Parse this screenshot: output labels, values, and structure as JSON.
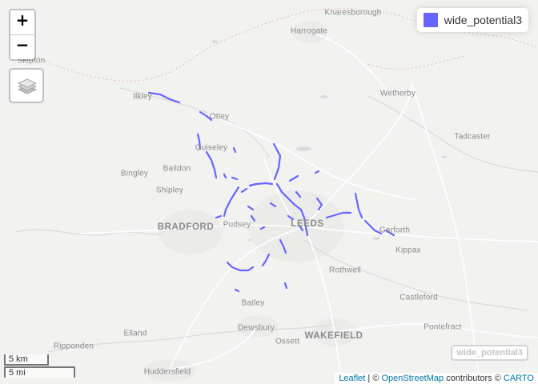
{
  "map": {
    "places": [
      {
        "name": "Knaresborough",
        "kind": "town"
      },
      {
        "name": "Harrogate",
        "kind": "town"
      },
      {
        "name": "Skipton",
        "kind": "town"
      },
      {
        "name": "Ilkley",
        "kind": "town"
      },
      {
        "name": "Otley",
        "kind": "town"
      },
      {
        "name": "Wetherby",
        "kind": "town"
      },
      {
        "name": "Tadcaster",
        "kind": "town"
      },
      {
        "name": "Guiseley",
        "kind": "town"
      },
      {
        "name": "Bingley",
        "kind": "town"
      },
      {
        "name": "Baildon",
        "kind": "town"
      },
      {
        "name": "Shipley",
        "kind": "town"
      },
      {
        "name": "BRADFORD",
        "kind": "city"
      },
      {
        "name": "Pudsey",
        "kind": "town"
      },
      {
        "name": "LEEDS",
        "kind": "city"
      },
      {
        "name": "Garforth",
        "kind": "town"
      },
      {
        "name": "Kippax",
        "kind": "town"
      },
      {
        "name": "Rothwell",
        "kind": "town"
      },
      {
        "name": "Castleford",
        "kind": "town"
      },
      {
        "name": "Batley",
        "kind": "town"
      },
      {
        "name": "Elland",
        "kind": "town"
      },
      {
        "name": "Dewsbury",
        "kind": "town"
      },
      {
        "name": "WAKEFIELD",
        "kind": "city"
      },
      {
        "name": "Ossett",
        "kind": "town"
      },
      {
        "name": "Pontefract",
        "kind": "town"
      },
      {
        "name": "Ripponden",
        "kind": "town"
      },
      {
        "name": "Huddersfield",
        "kind": "town"
      }
    ],
    "route_color": "#6666ff",
    "route_icon": "bike-route-lines"
  },
  "controls": {
    "zoom_in": "+",
    "zoom_out": "−",
    "layers_icon": "layers-icon"
  },
  "legend": {
    "label": "wide_potential3",
    "swatch_color": "#6666ff"
  },
  "layer_tag": "wide_potential3",
  "scale": {
    "km": "5 km",
    "mi": "5 mi"
  },
  "attribution": {
    "leaflet": "Leaflet",
    "sep": " | © ",
    "osm": "OpenStreetMap",
    "contrib": " contributors © ",
    "carto": "CARTO"
  }
}
